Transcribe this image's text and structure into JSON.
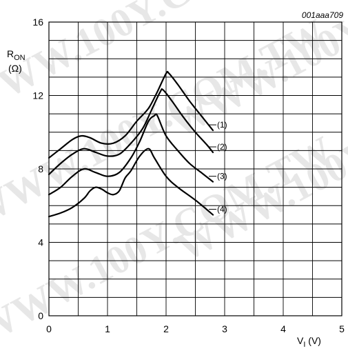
{
  "chart_data": {
    "type": "line",
    "figure_code": "001aaa709",
    "watermark": "WWW.100Y.COM.TW",
    "xlabel_main": "V",
    "xlabel_sub": "I",
    "xlabel_unit": " (V)",
    "ylabel_main": "R",
    "ylabel_sub": "ON",
    "ylabel_unit": "(Ω)",
    "xlim": [
      0,
      5
    ],
    "ylim": [
      0,
      16
    ],
    "x_ticks": [
      0,
      1,
      2,
      3,
      4,
      5
    ],
    "y_ticks": [
      0,
      4,
      8,
      12,
      16
    ],
    "x_minor_step": 0.5,
    "y_minor_step": 1,
    "grid": true,
    "series": [
      {
        "name": "(1)",
        "x": [
          0,
          0.2,
          0.4,
          0.55,
          0.7,
          0.9,
          1.1,
          1.3,
          1.5,
          1.7,
          1.85,
          2.0,
          2.05,
          2.2,
          2.4,
          2.6,
          2.8
        ],
        "y": [
          8.6,
          9.1,
          9.6,
          9.8,
          9.7,
          9.4,
          9.4,
          9.8,
          10.6,
          11.3,
          12.2,
          13.2,
          13.2,
          12.6,
          11.7,
          10.9,
          10.1
        ]
      },
      {
        "name": "(2)",
        "x": [
          0,
          0.2,
          0.4,
          0.6,
          0.8,
          1.0,
          1.2,
          1.4,
          1.6,
          1.75,
          1.9,
          1.95,
          2.1,
          2.3,
          2.5,
          2.7,
          2.8
        ],
        "y": [
          7.7,
          8.3,
          8.8,
          9.1,
          8.9,
          8.7,
          8.8,
          9.4,
          10.2,
          11.2,
          12.2,
          12.3,
          11.7,
          10.8,
          10.0,
          9.3,
          8.9
        ]
      },
      {
        "name": "(3)",
        "x": [
          0,
          0.2,
          0.4,
          0.6,
          0.8,
          1.0,
          1.2,
          1.4,
          1.55,
          1.7,
          1.8,
          1.85,
          2.0,
          2.2,
          2.4,
          2.6,
          2.8
        ],
        "y": [
          6.6,
          7.0,
          7.6,
          8.0,
          7.8,
          7.6,
          7.8,
          8.6,
          9.5,
          10.6,
          10.9,
          10.9,
          9.8,
          9.0,
          8.3,
          7.8,
          7.3
        ]
      },
      {
        "name": "(4)",
        "x": [
          0,
          0.2,
          0.4,
          0.6,
          0.7,
          0.8,
          0.9,
          1.0,
          1.1,
          1.2,
          1.3,
          1.4,
          1.55,
          1.7,
          1.8,
          2.0,
          2.2,
          2.5,
          2.8
        ],
        "y": [
          5.4,
          5.6,
          5.9,
          6.4,
          6.8,
          7.0,
          6.9,
          6.7,
          6.6,
          6.8,
          7.5,
          7.9,
          8.7,
          9.1,
          8.6,
          7.6,
          7.0,
          6.3,
          5.5
        ]
      }
    ]
  }
}
